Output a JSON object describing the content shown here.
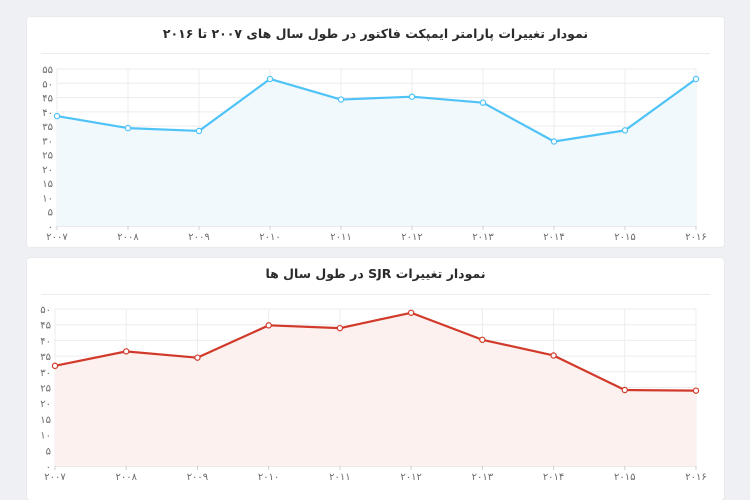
{
  "chart_data": [
    {
      "type": "area",
      "title": "نمودار تغییرات پارامتر ایمپکت فاکتور در طول سال های ۲۰۰۷ تا ۲۰۱۶",
      "xlabel": "",
      "ylabel": "",
      "categories": [
        "۲۰۰۷",
        "۲۰۰۸",
        "۲۰۰۹",
        "۲۰۱۰",
        "۲۰۱۱",
        "۲۰۱۲",
        "۲۰۱۳",
        "۲۰۱۴",
        "۲۰۱۵",
        "۲۰۱۶"
      ],
      "values": [
        38.5,
        34.3,
        33.3,
        51.5,
        44.3,
        45.3,
        43.2,
        29.6,
        33.5,
        51.5
      ],
      "yticks": [
        0,
        5,
        10,
        15,
        20,
        25,
        30,
        35,
        40,
        45,
        50,
        55
      ],
      "ytick_labels": [
        "۰",
        "۵",
        "۱۰",
        "۱۵",
        "۲۰",
        "۲۵",
        "۳۰",
        "۳۵",
        "۴۰",
        "۴۵",
        "۵۰",
        "۵۵"
      ],
      "ylim": [
        0,
        55
      ],
      "grid": true,
      "line_color": "#4fc3f7",
      "fill_color": "#f2f9fd"
    },
    {
      "type": "area",
      "title": "نمودار تغییرات SJR در طول سال ها",
      "xlabel": "",
      "ylabel": "",
      "categories": [
        "۲۰۰۷",
        "۲۰۰۸",
        "۲۰۰۹",
        "۲۰۱۰",
        "۲۰۱۱",
        "۲۰۱۲",
        "۲۰۱۳",
        "۲۰۱۴",
        "۲۰۱۵",
        "۲۰۱۶"
      ],
      "values": [
        31.9,
        36.5,
        34.5,
        44.8,
        43.9,
        48.8,
        40.2,
        35.2,
        24.2,
        24.0
      ],
      "yticks": [
        0,
        5,
        10,
        15,
        20,
        25,
        30,
        35,
        40,
        45,
        50
      ],
      "ytick_labels": [
        "۰",
        "۵",
        "۱۰",
        "۱۵",
        "۲۰",
        "۲۵",
        "۳۰",
        "۳۵",
        "۴۰",
        "۴۵",
        "۵۰"
      ],
      "ylim": [
        0,
        50
      ],
      "grid": true,
      "line_color": "#d13a2a",
      "fill_color": "#fdf1f0"
    }
  ]
}
